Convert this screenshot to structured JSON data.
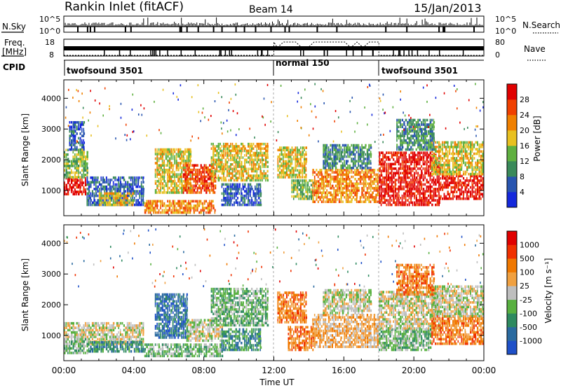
{
  "header": {
    "station": "Rankin Inlet (fitACF)",
    "beam": "Beam 14",
    "date": "15/Jan/2013"
  },
  "colors": {
    "noise_line": "#000000",
    "grid_dashed": "#aaaaaa",
    "ground_scatter": "#bebebe"
  },
  "noise_panel": {
    "left_label": "N.Sky",
    "right_label": "N.Search",
    "left_ticks": [
      "10^5",
      "10^0"
    ],
    "right_ticks": [
      "10^5",
      "10^0"
    ]
  },
  "freq_panel": {
    "left_label_1": "Freq.",
    "left_label_2": "[MHz]",
    "right_label": "Nave",
    "left_ticks": [
      "18",
      "8"
    ],
    "right_ticks": [
      "80",
      "0"
    ]
  },
  "cpid_panel": {
    "label": "CPID",
    "segments": [
      {
        "name": "twofsound 3501",
        "start_hour": 0,
        "end_hour": 12
      },
      {
        "name": "normal 150",
        "start_hour": 12,
        "end_hour": 18
      },
      {
        "name": "twofsound 3501",
        "start_hour": 18,
        "end_hour": 24
      }
    ]
  },
  "chart_data": [
    {
      "type": "heatmap",
      "title": "Power",
      "xlabel": "",
      "ylabel": "Slant Range [km]",
      "xlim": [
        0,
        24
      ],
      "ylim": [
        180,
        4600
      ],
      "yticks": [
        "1000",
        "2000",
        "3000",
        "4000"
      ],
      "colorbar": {
        "label": "Power [dB]",
        "tick_labels": [
          "4",
          "8",
          "12",
          "16",
          "20",
          "24",
          "28"
        ],
        "colors": [
          "#1428dc",
          "#2855b0",
          "#3a8a5a",
          "#5fb040",
          "#e8c020",
          "#f08000",
          "#f04000",
          "#e00000"
        ]
      },
      "regions": [
        {
          "t0": 0.0,
          "t1": 1.3,
          "r0": 850,
          "r1": 1400,
          "level": 7
        },
        {
          "t0": 0.0,
          "t1": 1.4,
          "r0": 1400,
          "r1": 2300,
          "level": 3
        },
        {
          "t0": 0.3,
          "t1": 1.2,
          "r0": 2300,
          "r1": 3200,
          "level": 1
        },
        {
          "t0": 1.3,
          "t1": 4.6,
          "r0": 500,
          "r1": 1400,
          "level": 1
        },
        {
          "t0": 2.0,
          "t1": 4.0,
          "r0": 500,
          "r1": 900,
          "level": 4
        },
        {
          "t0": 5.2,
          "t1": 7.2,
          "r0": 900,
          "r1": 2300,
          "level": 4
        },
        {
          "t0": 6.8,
          "t1": 8.6,
          "r0": 900,
          "r1": 1800,
          "level": 6
        },
        {
          "t0": 4.6,
          "t1": 8.6,
          "r0": 250,
          "r1": 650,
          "level": 5
        },
        {
          "t0": 8.4,
          "t1": 11.6,
          "r0": 1300,
          "r1": 2500,
          "level": 4
        },
        {
          "t0": 9.0,
          "t1": 11.2,
          "r0": 500,
          "r1": 1200,
          "level": 1
        },
        {
          "t0": 12.2,
          "t1": 13.8,
          "r0": 1400,
          "r1": 2400,
          "level": 4
        },
        {
          "t0": 13.0,
          "t1": 14.2,
          "r0": 700,
          "r1": 1300,
          "level": 3
        },
        {
          "t0": 14.2,
          "t1": 18.0,
          "r0": 600,
          "r1": 1700,
          "level": 5
        },
        {
          "t0": 14.8,
          "t1": 17.6,
          "r0": 1700,
          "r1": 2500,
          "level": 2
        },
        {
          "t0": 18.0,
          "t1": 21.5,
          "r0": 500,
          "r1": 2200,
          "level": 7
        },
        {
          "t0": 21.5,
          "t1": 24.0,
          "r0": 700,
          "r1": 1500,
          "level": 7
        },
        {
          "t0": 21.0,
          "t1": 24.0,
          "r0": 1500,
          "r1": 2600,
          "level": 4
        },
        {
          "t0": 19.0,
          "t1": 21.2,
          "r0": 2300,
          "r1": 3300,
          "level": 2
        }
      ]
    },
    {
      "type": "heatmap",
      "title": "Velocity",
      "xlabel": "Time UT",
      "ylabel": "Slant Range [km]",
      "xlim": [
        0,
        24
      ],
      "ylim": [
        180,
        4600
      ],
      "yticks": [
        "1000",
        "2000",
        "3000",
        "4000"
      ],
      "xticks": [
        "00:00",
        "04:00",
        "08:00",
        "12:00",
        "16:00",
        "20:00",
        "00:00"
      ],
      "colorbar": {
        "label": "Velocity [m s⁻¹]",
        "tick_labels": [
          "1000",
          "500",
          "100",
          "25",
          "-25",
          "-100",
          "-500",
          "-1000"
        ],
        "colors": [
          "#1e50c8",
          "#2a6aa0",
          "#2e8a60",
          "#58b040",
          "#bebebe",
          "#f0a040",
          "#f07800",
          "#f03000",
          "#e00000"
        ]
      },
      "regions": [
        {
          "t0": 0.0,
          "t1": 4.6,
          "r0": 700,
          "r1": 1400,
          "level": 4
        },
        {
          "t0": 0.0,
          "t1": 1.4,
          "r0": 400,
          "r1": 900,
          "level": 3
        },
        {
          "t0": 1.4,
          "t1": 4.6,
          "r0": 450,
          "r1": 800,
          "level": 2
        },
        {
          "t0": 5.2,
          "t1": 7.0,
          "r0": 900,
          "r1": 2300,
          "level": 1
        },
        {
          "t0": 4.6,
          "t1": 9.0,
          "r0": 300,
          "r1": 700,
          "level": 3
        },
        {
          "t0": 7.0,
          "t1": 9.0,
          "r0": 800,
          "r1": 1500,
          "level": 4
        },
        {
          "t0": 8.4,
          "t1": 11.6,
          "r0": 1300,
          "r1": 2500,
          "level": 3
        },
        {
          "t0": 9.0,
          "t1": 11.2,
          "r0": 500,
          "r1": 1200,
          "level": 2
        },
        {
          "t0": 12.2,
          "t1": 13.8,
          "r0": 1400,
          "r1": 2400,
          "level": 6
        },
        {
          "t0": 12.8,
          "t1": 14.2,
          "r0": 500,
          "r1": 1300,
          "level": 6
        },
        {
          "t0": 14.2,
          "t1": 18.0,
          "r0": 600,
          "r1": 1700,
          "level": 5
        },
        {
          "t0": 14.8,
          "t1": 17.6,
          "r0": 1700,
          "r1": 2500,
          "level": 4
        },
        {
          "t0": 18.0,
          "t1": 21.0,
          "r0": 500,
          "r1": 1200,
          "level": 3
        },
        {
          "t0": 18.0,
          "t1": 21.5,
          "r0": 1200,
          "r1": 2400,
          "level": 4
        },
        {
          "t0": 21.0,
          "t1": 24.0,
          "r0": 700,
          "r1": 1600,
          "level": 6
        },
        {
          "t0": 21.0,
          "t1": 24.0,
          "r0": 1600,
          "r1": 2600,
          "level": 4
        },
        {
          "t0": 19.0,
          "t1": 21.2,
          "r0": 2300,
          "r1": 3300,
          "level": 6
        }
      ]
    }
  ]
}
